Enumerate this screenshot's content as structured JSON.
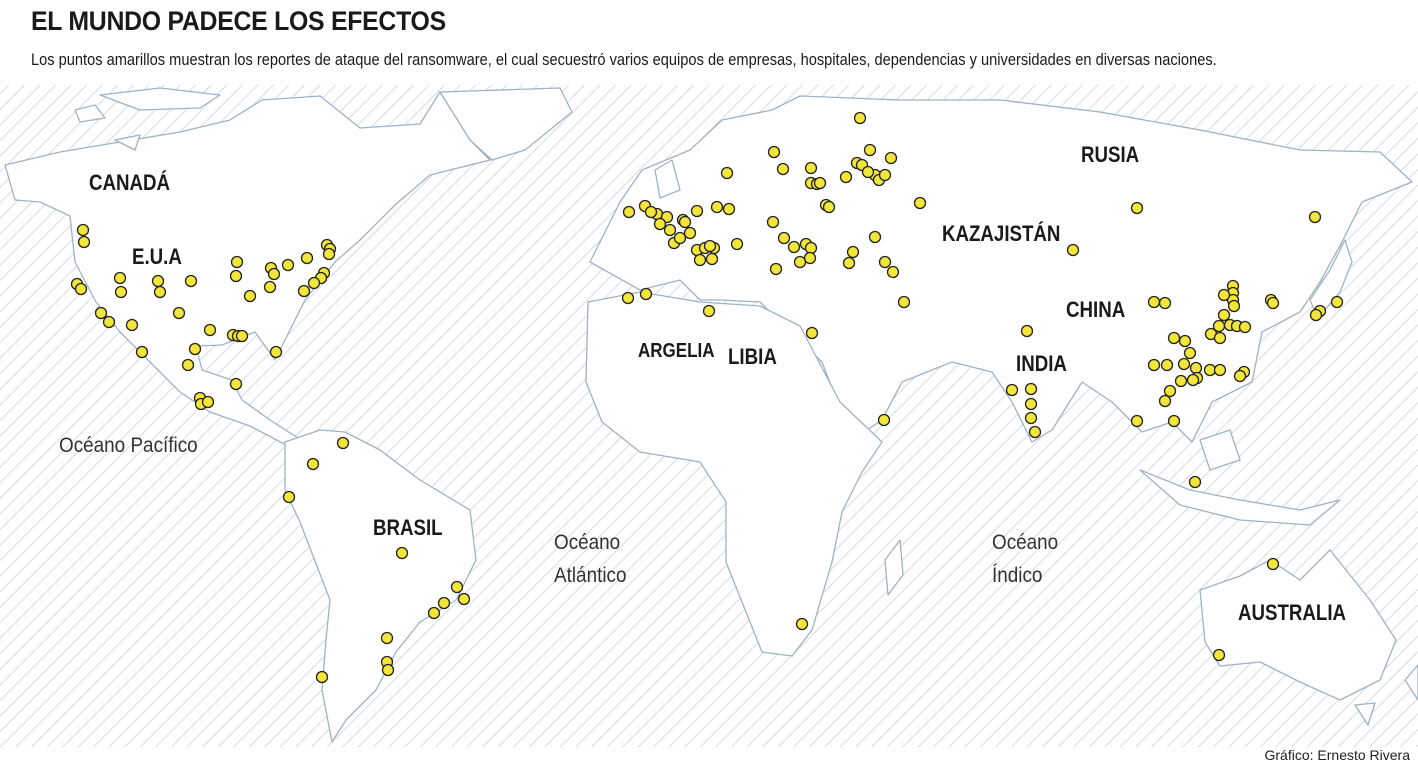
{
  "header": {
    "title": "EL MUNDO PADECE LOS EFECTOS",
    "subtitle": "Los puntos amarillos muestran los reportes de ataque del ransomware, el cual secuestró varios equipos de empresas, hospitales, dependencias y universidades en diversas naciones."
  },
  "map": {
    "country_labels": [
      "CANADÁ",
      "E.U.A",
      "BRASIL",
      "ARGELIA",
      "LIBIA",
      "RUSIA",
      "KAZAJISTÁN",
      "CHINA",
      "INDIA",
      "AUSTRALIA"
    ],
    "ocean_labels": {
      "pacific": "Océano Pacífico",
      "atlantic_1": "Océano",
      "atlantic_2": "Atlántico",
      "indian_1": "Océano",
      "indian_2": "Índico"
    },
    "colors": {
      "dot": "#f3e63a",
      "dot_stroke": "#222222",
      "land_stroke": "#9fb2c3",
      "hatch": "#c9d3dc"
    }
  },
  "footer": {
    "credit": "Gráfico: Ernesto Rivera"
  }
}
